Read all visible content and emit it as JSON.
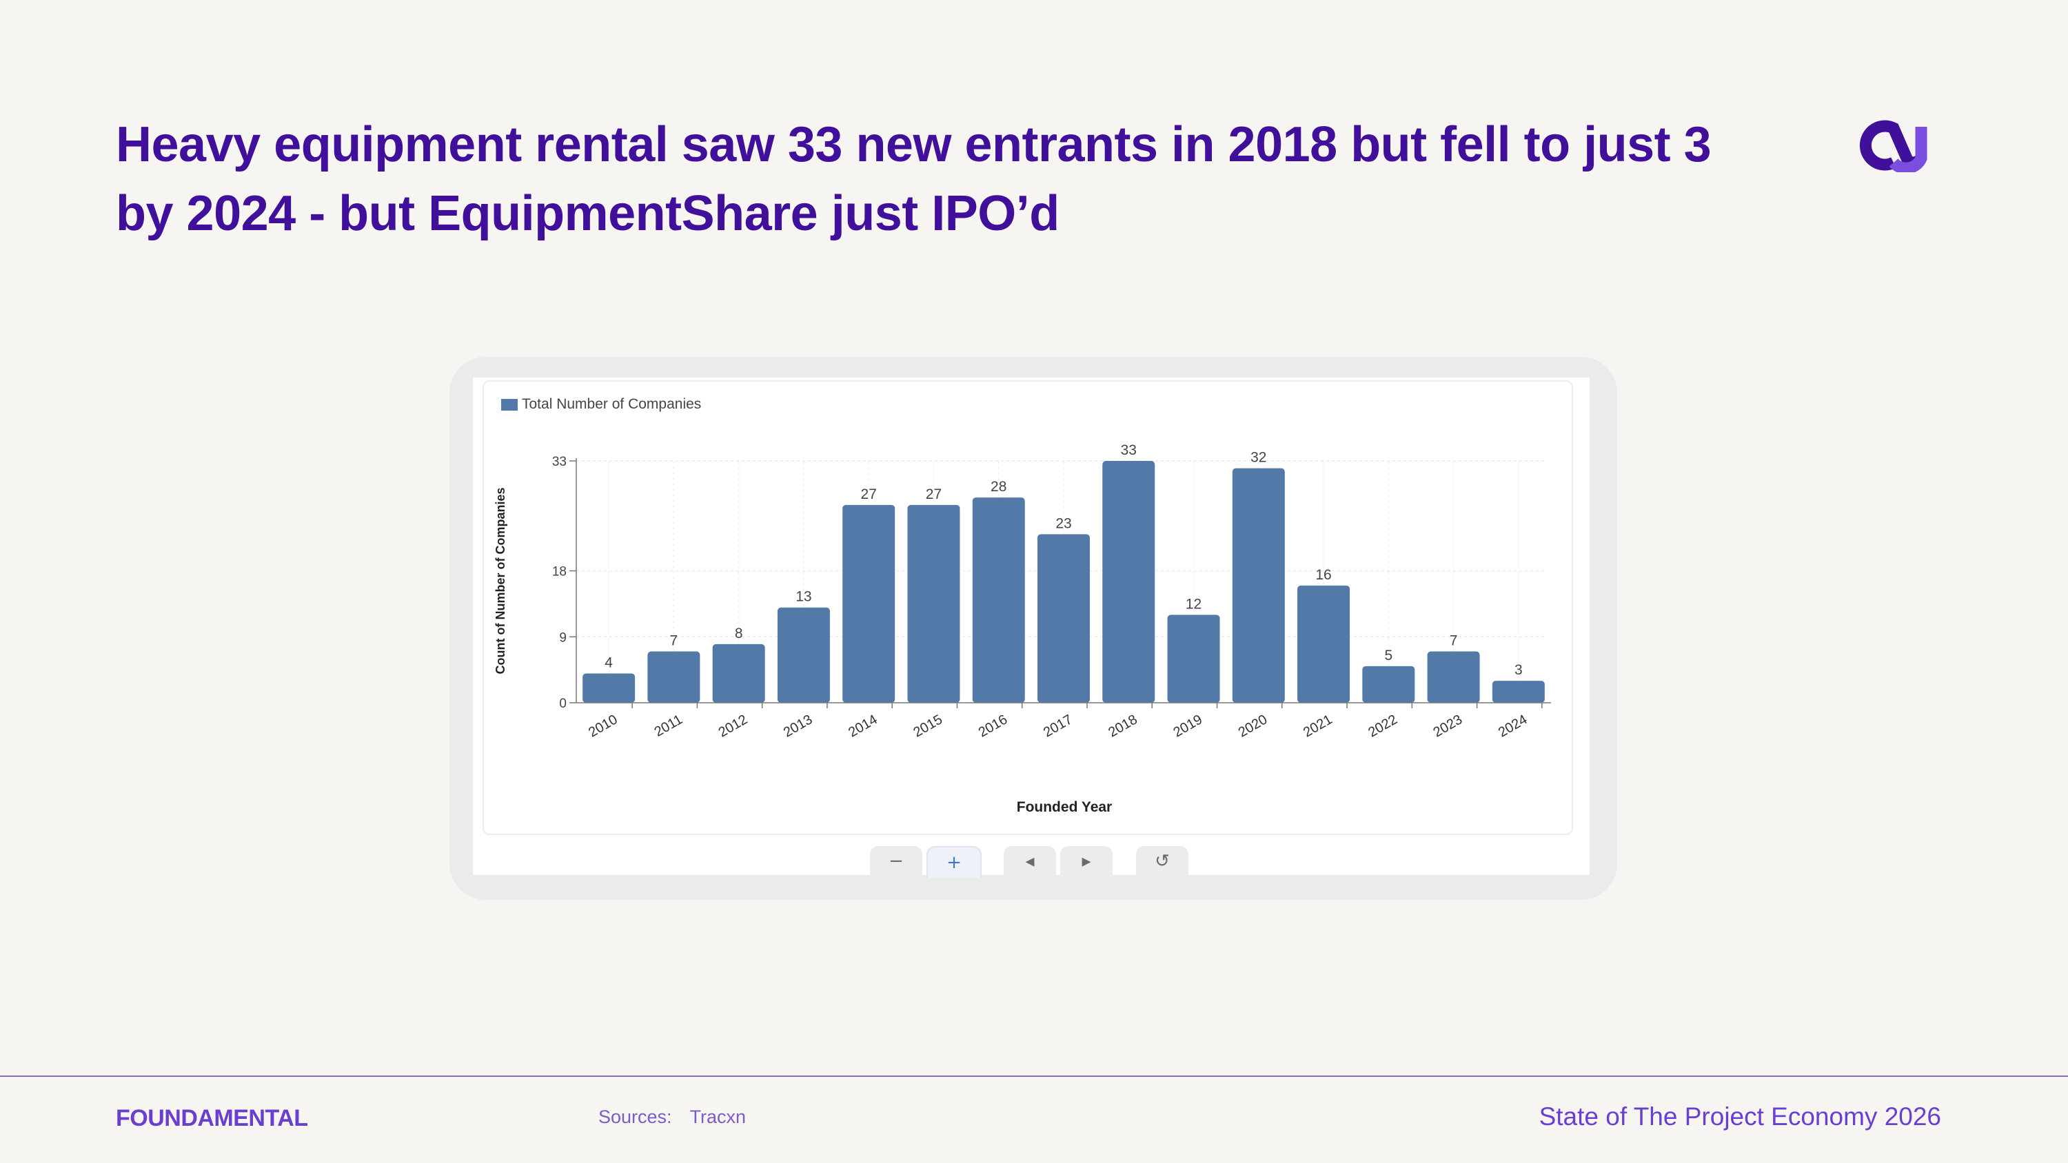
{
  "slide": {
    "title": "Heavy equipment rental saw 33 new entrants in 2018 but fell to just 3 by 2024 - but EquipmentShare just IPO’d",
    "logo_icon": "fundamental-mark-icon",
    "brand": "FOUNDAMENTAL",
    "sources_label": "Sources:",
    "sources_value": "Tracxn",
    "footer_right": "State of The Project Economy 2026",
    "colors": {
      "title": "#40109b",
      "accent": "#6a3fcf",
      "bar": "#5279a8",
      "background": "#f6f5f2"
    }
  },
  "controls": [
    {
      "name": "zoom-out-button",
      "glyph": "−",
      "icon": "minus-icon"
    },
    {
      "name": "zoom-in-button",
      "glyph": "+",
      "icon": "plus-icon",
      "active": true
    },
    {
      "name": "previous-button",
      "glyph": "◂",
      "icon": "caret-left-icon"
    },
    {
      "name": "next-button",
      "glyph": "▸",
      "icon": "caret-right-icon"
    },
    {
      "name": "reset-button",
      "glyph": "↺",
      "icon": "reset-icon"
    }
  ],
  "chart_data": {
    "type": "bar",
    "categories": [
      "2010",
      "2011",
      "2012",
      "2013",
      "2014",
      "2015",
      "2016",
      "2017",
      "2018",
      "2019",
      "2020",
      "2021",
      "2022",
      "2023",
      "2024"
    ],
    "series": [
      {
        "name": "Total Number of Companies",
        "values": [
          4,
          7,
          8,
          13,
          27,
          27,
          28,
          23,
          33,
          12,
          32,
          16,
          5,
          7,
          3
        ]
      }
    ],
    "xlabel": "Founded Year",
    "ylabel": "Count of Number of Companies",
    "yticks": [
      0,
      9,
      18,
      33
    ],
    "ylim": [
      0,
      33
    ],
    "grid": true,
    "legend": "top-left",
    "data_labels": true
  }
}
